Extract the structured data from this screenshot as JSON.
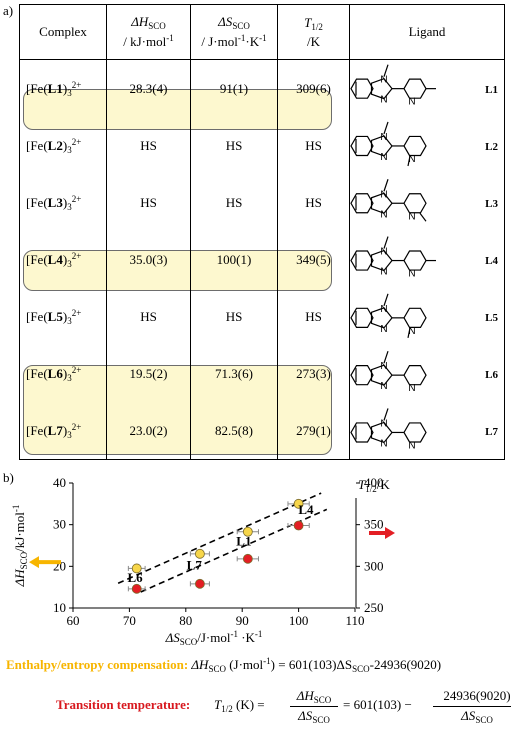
{
  "panel_a_label": "a)",
  "panel_b_label": "b)",
  "table": {
    "headers": {
      "complex": "Complex",
      "dh_sym": "ΔH",
      "dh_sub": "SCO",
      "dh_unit": "/ kJ·mol",
      "dh_unit_exp": "-1",
      "ds_sym": "ΔS",
      "ds_sub": "SCO",
      "ds_unit_a": "/ J·mol",
      "ds_unit_exp1": "-1",
      "ds_unit_b": "·K",
      "ds_unit_exp2": "-1",
      "t_sym": "T",
      "t_sub": "1/2",
      "t_unit": "/K",
      "ligand": "Ligand"
    },
    "rows": [
      {
        "pre": "[Fe(",
        "lig": "L1",
        "post": ")",
        "sub": "3",
        "charge": "2+",
        "dh": "28.3(4)",
        "ds": "91(1)",
        "t": "309(6)",
        "label": "L1"
      },
      {
        "pre": "[Fe(",
        "lig": "L2",
        "post": ")",
        "sub": "3",
        "charge": "2+",
        "dh": "HS",
        "ds": "HS",
        "t": "HS",
        "label": "L2"
      },
      {
        "pre": "[Fe(",
        "lig": "L3",
        "post": ")",
        "sub": "3",
        "charge": "2+",
        "dh": "HS",
        "ds": "HS",
        "t": "HS",
        "label": "L3"
      },
      {
        "pre": "[Fe(",
        "lig": "L4",
        "post": ")",
        "sub": "3",
        "charge": "2+",
        "dh": "35.0(3)",
        "ds": "100(1)",
        "t": "349(5)",
        "label": "L4"
      },
      {
        "pre": "[Fe(",
        "lig": "L5",
        "post": ")",
        "sub": "3",
        "charge": "2+",
        "dh": "HS",
        "ds": "HS",
        "t": "HS",
        "label": "L5"
      },
      {
        "pre": "[Fe(",
        "lig": "L6",
        "post": ")",
        "sub": "3",
        "charge": "2+",
        "dh": "19.5(2)",
        "ds": "71.3(6)",
        "t": "273(3)",
        "label": "L6"
      },
      {
        "pre": "[Fe(",
        "lig": "L7",
        "post": ")",
        "sub": "3",
        "charge": "2+",
        "dh": "23.0(2)",
        "ds": "82.5(8)",
        "t": "279(1)",
        "label": "L7"
      }
    ]
  },
  "chart_data": {
    "type": "scatter",
    "xlabel_sym": "ΔS",
    "xlabel_sub": "SCO",
    "xlabel_unit": "/J·mol",
    "xlabel_exp1": "-1",
    "xlabel_mid": " ·K",
    "xlabel_exp2": "-1",
    "ylabel_left_sym": "ΔH",
    "ylabel_left_sub": "SCO",
    "ylabel_left_unit": "/kJ·mol",
    "ylabel_left_exp": "-1",
    "ylabel_right_sym": "T",
    "ylabel_right_sub": "1/2",
    "ylabel_right_unit": "/K",
    "xlim": [
      60,
      110
    ],
    "xticks": [
      "60",
      "70",
      "80",
      "90",
      "100",
      "110"
    ],
    "ylim_left": [
      10,
      40
    ],
    "yticks_left": [
      "10",
      "20",
      "30",
      "40"
    ],
    "ylim_right": [
      250,
      400
    ],
    "yticks_right": [
      "250",
      "300",
      "350",
      "400"
    ],
    "series": [
      {
        "axis": "left",
        "color": "#f7d64a",
        "points": [
          {
            "x": 71.3,
            "y": 19.5,
            "xerr": 0.6
          },
          {
            "x": 82.5,
            "y": 23.0,
            "xerr": 0.8
          },
          {
            "x": 91,
            "y": 28.3,
            "xerr": 1
          },
          {
            "x": 100,
            "y": 35.0,
            "xerr": 1
          }
        ]
      },
      {
        "axis": "right",
        "color": "#e31e24",
        "points": [
          {
            "x": 71.3,
            "y": 273,
            "xerr": 0.6
          },
          {
            "x": 82.5,
            "y": 279,
            "xerr": 0.8
          },
          {
            "x": 91,
            "y": 309,
            "xerr": 1
          },
          {
            "x": 100,
            "y": 349,
            "xerr": 1
          }
        ]
      }
    ],
    "fits": [
      {
        "axis": "left",
        "slope": 0.601,
        "intercept": -24.936,
        "offset": 0,
        "x_from": 68,
        "x_to": 104
      },
      {
        "axis": "left",
        "slope": 0.601,
        "intercept": -24.936,
        "offset": -4.5,
        "x_from": 72,
        "x_to": 105
      }
    ],
    "annotations": [
      {
        "text": "L6",
        "x": 71,
        "y": 16.2
      },
      {
        "text": "L7",
        "x": 81.5,
        "y": 19.2
      },
      {
        "text": "L1",
        "x": 90.3,
        "y": 25.0
      },
      {
        "text": "L4",
        "x": 101.3,
        "y": 32.6
      }
    ],
    "arrow_left_color": "#f7b500",
    "arrow_right_color": "#e31e24"
  },
  "equations": {
    "eq1_label": "Enthalpy/entropy compensation",
    "eq1_colon": ": ",
    "eq1_sym": "ΔH",
    "eq1_sub": "SCO",
    "eq1_unit": " (J·mol",
    "eq1_exp": "-1",
    "eq1_rhs1": ") = 601(103)ΔS",
    "eq1_sub2": "SCO",
    "eq1_rhs2": "-24936(9020)",
    "eq1_color": "#f7b500",
    "eq2_label": "Transition temperature",
    "eq2_colon": ":",
    "eq2_lhs_sym": "T",
    "eq2_lhs_sub": "1/2",
    "eq2_lhs_unit": " (K) =",
    "eq2_num_sym": "ΔH",
    "eq2_num_sub": "SCO",
    "eq2_den_sym": "ΔS",
    "eq2_den_sub": "SCO",
    "eq2_mid": "= 601(103) −",
    "eq2_num2": "24936(9020)",
    "eq2_den2_sym": "ΔS",
    "eq2_den2_sub": "SCO",
    "eq2_color": "#d8191f"
  }
}
